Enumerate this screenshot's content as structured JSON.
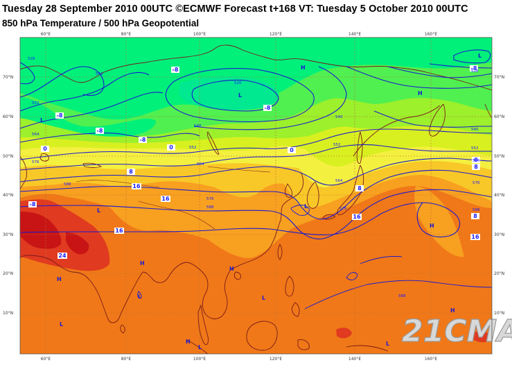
{
  "header": {
    "title": "Tuesday 28 September 2010 00UTC ©ECMWF Forecast t+168 VT: Tuesday 5 October 2010 00UTC",
    "subtitle": "850 hPa Temperature / 500 hPa Geopotential"
  },
  "watermark": "21CMA",
  "map": {
    "lon_labels": [
      "60°E",
      "80°E",
      "100°E",
      "120°E",
      "140°E",
      "160°E"
    ],
    "lat_labels": [
      "70°N",
      "60°N",
      "50°N",
      "40°N",
      "30°N",
      "20°N",
      "10°N"
    ],
    "colors": {
      "temp_minus8": "#00f07a",
      "temp_minus4": "#50f050",
      "temp_0": "#9cf02c",
      "temp_4": "#d8f020",
      "temp_8": "#f4f040",
      "temp_12": "#f8c828",
      "temp_16": "#f8a020",
      "temp_20": "#f07818",
      "temp_24": "#e03a20",
      "temp_28": "#c81414",
      "coastline": "#7a1a1a",
      "contour": "#1a1ad0",
      "grid": "#c07030"
    },
    "temperature_labels": [
      {
        "text": "-8"
      },
      {
        "text": "-8"
      },
      {
        "text": "-8"
      },
      {
        "text": "-8"
      },
      {
        "text": "-8"
      },
      {
        "text": "0"
      },
      {
        "text": "0"
      },
      {
        "text": "-8"
      },
      {
        "text": "8"
      },
      {
        "text": "16"
      },
      {
        "text": "16"
      },
      {
        "text": "16"
      },
      {
        "text": "24"
      },
      {
        "text": "8"
      },
      {
        "text": "16"
      },
      {
        "text": "16"
      },
      {
        "text": "8"
      },
      {
        "text": "-8"
      },
      {
        "text": "0"
      },
      {
        "text": "0"
      },
      {
        "text": "8"
      }
    ],
    "geopotential_labels": [
      "528",
      "540",
      "552",
      "564",
      "576",
      "588",
      "520",
      "540",
      "552",
      "564",
      "576",
      "588",
      "540",
      "552",
      "564",
      "576",
      "588",
      "528",
      "540",
      "552",
      "564",
      "576",
      "588"
    ],
    "pressure_centers": [
      "L",
      "H",
      "L",
      "H",
      "L",
      "L",
      "H",
      "L",
      "H",
      "H",
      "L",
      "H",
      "L",
      "H",
      "L",
      "H",
      "L",
      "L"
    ]
  }
}
